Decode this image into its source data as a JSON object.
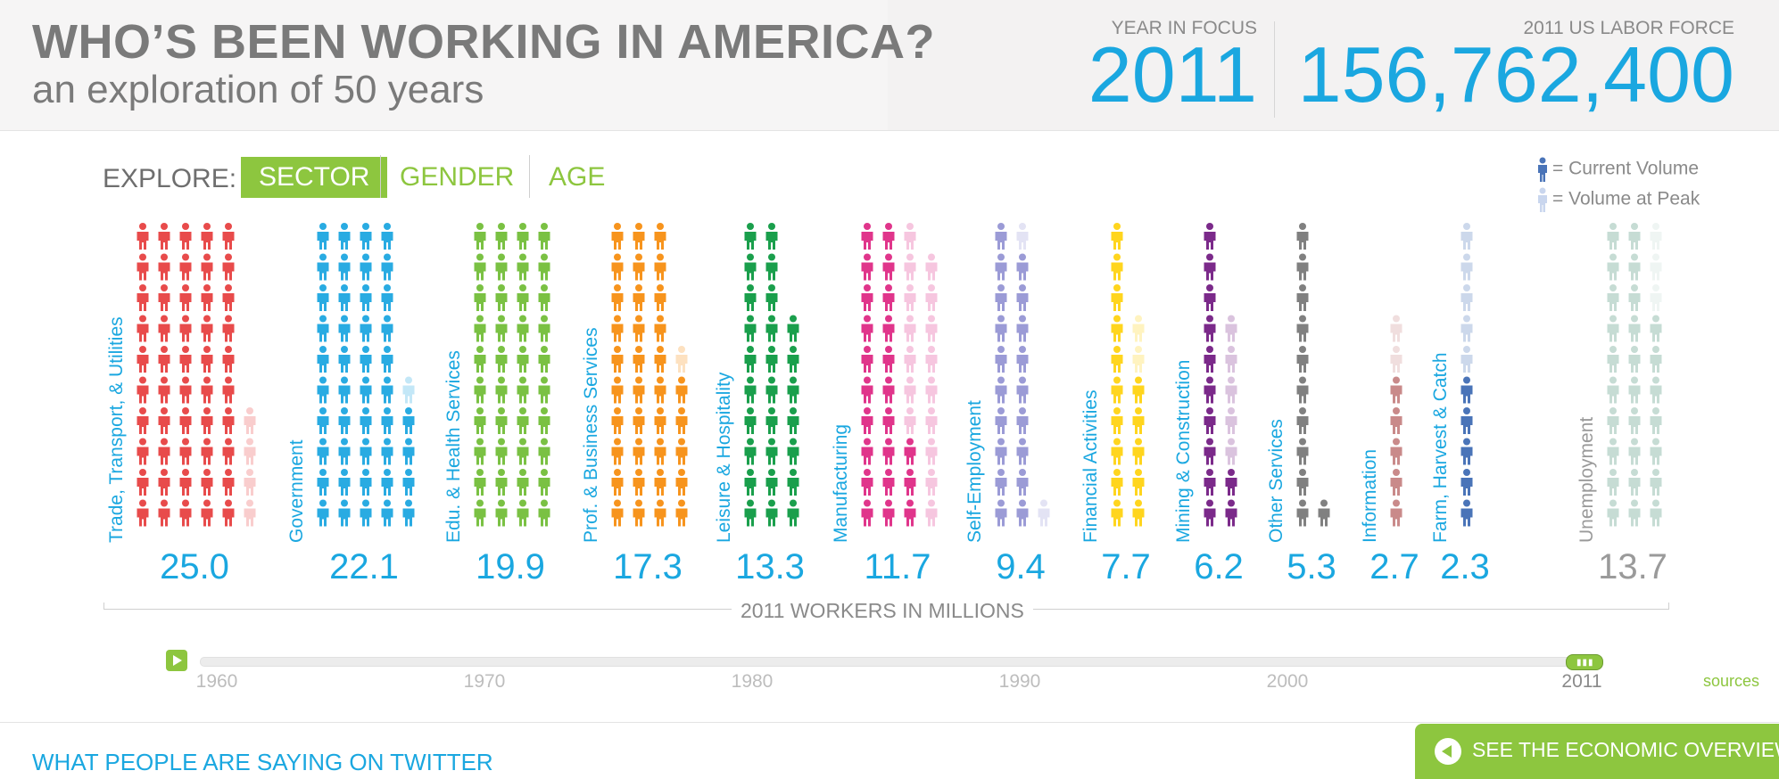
{
  "header": {
    "title": "WHO’S BEEN WORKING IN AMERICA?",
    "subtitle": "an exploration of 50 years",
    "year_focus_label": "YEAR IN FOCUS",
    "year_focus_value": "2011",
    "labor_force_label": "2011 US LABOR FORCE",
    "labor_force_value": "156,762,400"
  },
  "explore": {
    "label": "EXPLORE:",
    "tabs": [
      "SECTOR",
      "GENDER",
      "AGE"
    ],
    "active": "SECTOR"
  },
  "legend": {
    "current": "= Current Volume",
    "peak": "= Volume at Peak"
  },
  "colors": {
    "accent": "#1aa7e0",
    "green": "#8dc63f"
  },
  "chart_data": {
    "type": "pictograph",
    "title": "2011 WORKERS IN MILLIONS",
    "unit": "millions of workers",
    "year": "2011",
    "legend": [
      "= Current Volume",
      "= Volume at Peak"
    ],
    "series": [
      {
        "label": "Trade, Transport, & Utilities",
        "value": 25.0,
        "display": "25.0",
        "peak": 27.0,
        "color": "#e84b4b"
      },
      {
        "label": "Government",
        "value": 22.1,
        "display": "22.1",
        "peak": 22.6,
        "color": "#29abe2"
      },
      {
        "label": "Edu. & Health Services",
        "value": 19.9,
        "display": "19.9",
        "peak": 19.9,
        "color": "#7ac143"
      },
      {
        "label": "Prof. & Business Services",
        "value": 17.3,
        "display": "17.3",
        "peak": 17.9,
        "color": "#f7941d"
      },
      {
        "label": "Leisure & Hospitality",
        "value": 13.3,
        "display": "13.3",
        "peak": 13.3,
        "color": "#1a9f4c"
      },
      {
        "label": "Manufacturing",
        "value": 11.7,
        "display": "11.7",
        "peak": 19.5,
        "color": "#e0358b"
      },
      {
        "label": "Self-Employment",
        "value": 9.4,
        "display": "9.4",
        "peak": 10.4,
        "color": "#9b9bd6"
      },
      {
        "label": "Financial Activities",
        "value": 7.7,
        "display": "7.7",
        "peak": 8.3,
        "color": "#ffd51e"
      },
      {
        "label": "Mining & Construction",
        "value": 6.2,
        "display": "6.2",
        "peak": 8.3,
        "color": "#7b2a8a"
      },
      {
        "label": "Other Services",
        "value": 5.3,
        "display": "5.3",
        "peak": 5.3,
        "color": "#808080"
      },
      {
        "label": "Information",
        "value": 2.7,
        "display": "2.7",
        "peak": 3.7,
        "color": "#c98a8a"
      },
      {
        "label": "Farm, Harvest & Catch",
        "value": 2.3,
        "display": "2.3",
        "peak": 5.0,
        "color": "#4a74b8"
      },
      {
        "label": "Unemployment",
        "value": 13.7,
        "display": "13.7",
        "peak": 14.8,
        "color": "#c6dcd4",
        "label_color": "#9a9a9a"
      }
    ]
  },
  "timeline": {
    "years": [
      "1960",
      "1970",
      "1980",
      "1990",
      "2000",
      "2011"
    ],
    "current": "2011",
    "sources": "sources"
  },
  "footer": {
    "twitter": "WHAT PEOPLE ARE SAYING ON TWITTER",
    "economic_overview": "SEE THE ECONOMIC OVERVIEW"
  }
}
